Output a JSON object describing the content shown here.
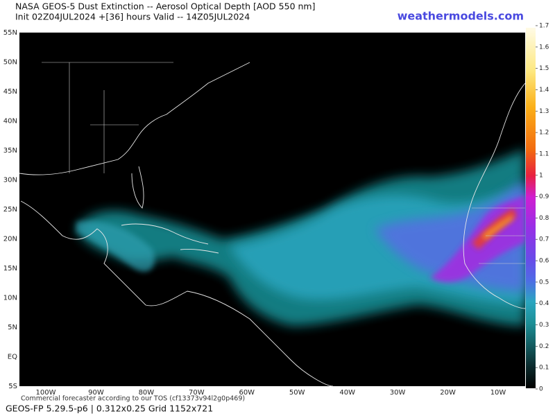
{
  "header": {
    "title": "NASA GEOS-5 Dust Extinction -- Aerosol Optical Depth [AOD 550 nm]",
    "subtitle": "Init 02Z04JUL2024 +[36] hours Valid -- 14Z05JUL2024",
    "brand": "weathermodels.com"
  },
  "map": {
    "lat_labels": [
      "55N",
      "50N",
      "45N",
      "40N",
      "35N",
      "30N",
      "25N",
      "20N",
      "15N",
      "10N",
      "5N",
      "EQ",
      "5S"
    ],
    "lon_labels": [
      "100W",
      "90W",
      "80W",
      "70W",
      "60W",
      "50W",
      "40W",
      "30W",
      "20W",
      "10W"
    ]
  },
  "colorbar": {
    "ticks": [
      0,
      0.1,
      0.2,
      0.3,
      0.4,
      0.5,
      0.6,
      0.7,
      0.8,
      0.9,
      1,
      1.1,
      1.2,
      1.3,
      1.4,
      1.5,
      1.6,
      1.7
    ]
  },
  "footer": {
    "notice": "Commercial forecaster according to our TOS (cf13373v94l2g0p469)",
    "model": "GEOS-FP 5.29.5-p6 | 0.312x0.25 Grid 1152x721"
  }
}
